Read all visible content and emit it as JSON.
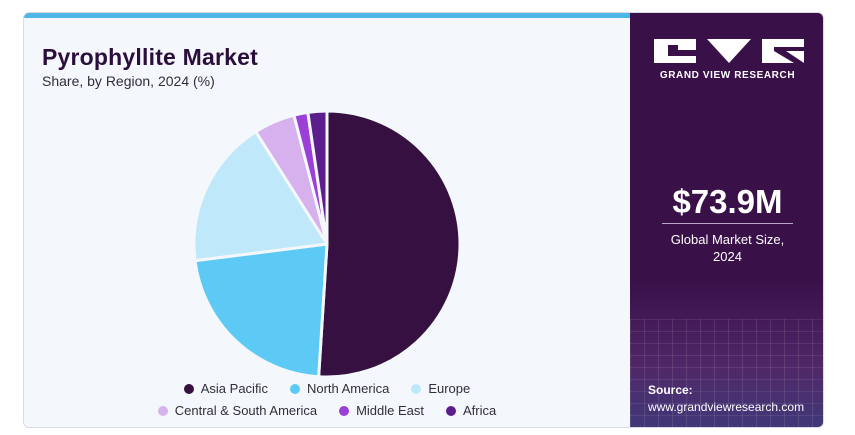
{
  "header": {
    "title": "Pyrophyllite Market",
    "subtitle": "Share, by Region, 2024 (%)"
  },
  "chart_data": {
    "type": "pie",
    "title": "Pyrophyllite Market",
    "subtitle": "Share, by Region, 2024 (%)",
    "legend_position": "bottom",
    "slices": [
      {
        "name": "Asia Pacific",
        "value": 51.0,
        "color": "#351041"
      },
      {
        "name": "North America",
        "value": 22.0,
        "color": "#5ccaf5"
      },
      {
        "name": "Europe",
        "value": 18.0,
        "color": "#bfe8fa"
      },
      {
        "name": "Central & South America",
        "value": 5.0,
        "color": "#d7b0ee"
      },
      {
        "name": "Middle East",
        "value": 1.7,
        "color": "#9b3fd6"
      },
      {
        "name": "Africa",
        "value": 2.3,
        "color": "#5b1e8c"
      }
    ]
  },
  "side_panel": {
    "brand": "GRAND VIEW RESEARCH",
    "market_value": "$73.9M",
    "market_label_line1": "Global Market Size,",
    "market_label_line2": "2024",
    "source_label": "Source:",
    "source_url": "www.grandviewresearch.com",
    "logo_icon": "gvr-logo-icon"
  }
}
